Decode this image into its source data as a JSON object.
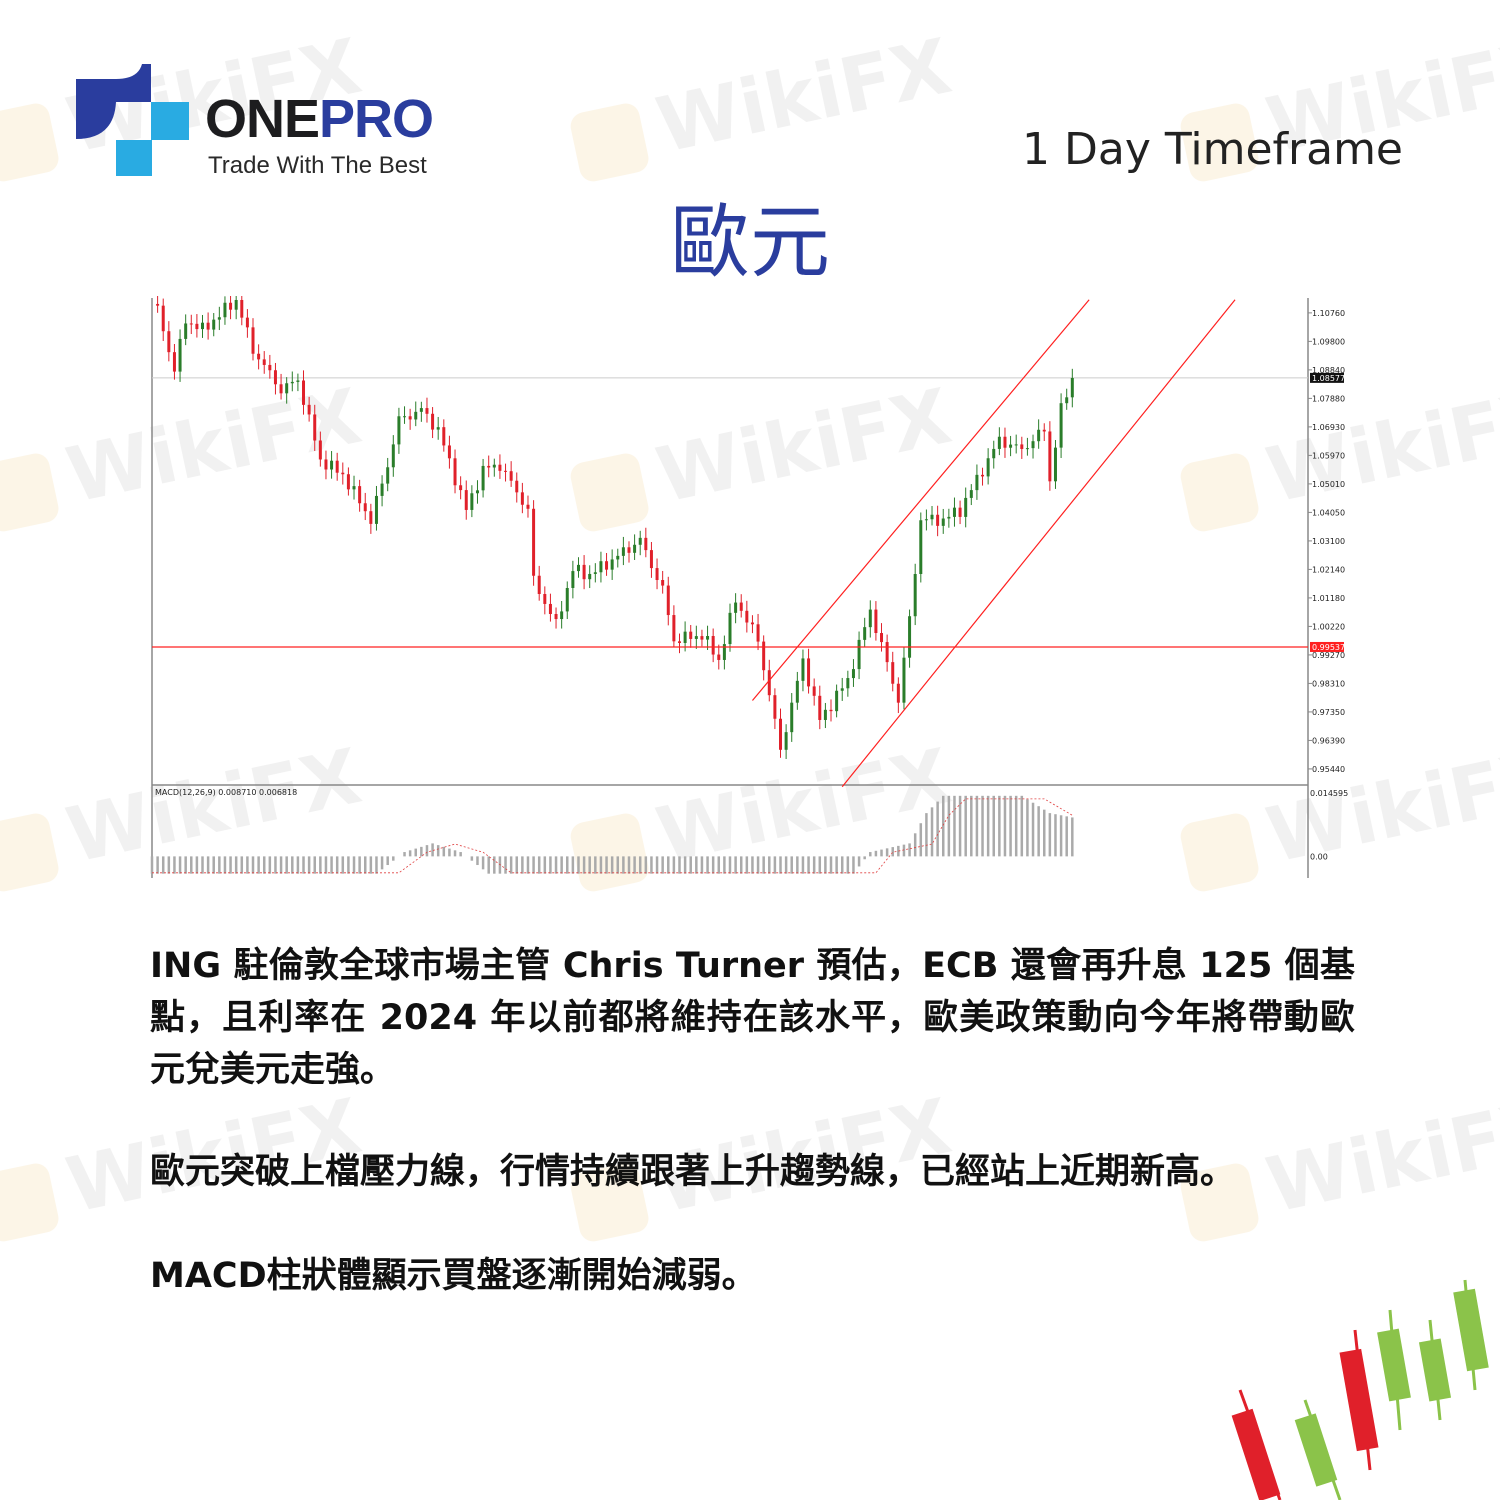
{
  "brand": {
    "name_part1": "ONE",
    "name_part2": "PRO",
    "tagline": "Trade With The Best"
  },
  "header": {
    "timeframe": "1 Day Timeframe",
    "title": "歐元"
  },
  "watermark": "WikiFX",
  "colors": {
    "brand_blue": "#2a3d9e",
    "brand_cyan": "#29abe2",
    "bear": "#e0202a",
    "bull": "#2a7d2a",
    "line": "#ff2020"
  },
  "chart_data": {
    "type": "candlestick",
    "title": "",
    "xlim": [
      0,
      206
    ],
    "ylim": [
      0.949,
      1.1126
    ],
    "y_ticks": [
      "1.10760",
      "1.09800",
      "1.08840",
      "1.07880",
      "1.06930",
      "1.05970",
      "1.05010",
      "1.04050",
      "1.03100",
      "1.02140",
      "1.01180",
      "1.00220",
      "0.99270",
      "0.98310",
      "0.97350",
      "0.96390",
      "0.95440"
    ],
    "last_price_label": "1.08577",
    "horizontal_line": {
      "price": 0.99537,
      "label": "0.99537"
    },
    "close_path": [
      [
        1,
        1.1086
      ],
      [
        4,
        1.0884
      ],
      [
        6,
        1.1052
      ],
      [
        9,
        1.1019
      ],
      [
        15,
        1.112
      ],
      [
        18,
        1.0952
      ],
      [
        23,
        1.0817
      ],
      [
        26,
        1.0851
      ],
      [
        30,
        1.0582
      ],
      [
        34,
        1.0532
      ],
      [
        39,
        1.0381
      ],
      [
        42,
        1.0565
      ],
      [
        44,
        1.0716
      ],
      [
        48,
        1.075
      ],
      [
        51,
        1.0683
      ],
      [
        56,
        1.0414
      ],
      [
        59,
        1.0549
      ],
      [
        62,
        1.0565
      ],
      [
        67,
        1.0414
      ],
      [
        68,
        1.0179
      ],
      [
        72,
        1.0028
      ],
      [
        75,
        1.0213
      ],
      [
        78,
        1.0196
      ],
      [
        82,
        1.0246
      ],
      [
        87,
        1.0313
      ],
      [
        91,
        1.0145
      ],
      [
        93,
        0.9977
      ],
      [
        98,
        0.9994
      ],
      [
        101,
        0.991
      ],
      [
        104,
        1.0112
      ],
      [
        108,
        0.9977
      ],
      [
        112,
        0.9608
      ],
      [
        116,
        0.991
      ],
      [
        119,
        0.9708
      ],
      [
        124,
        0.9843
      ],
      [
        128,
        1.0078
      ],
      [
        133,
        0.9776
      ],
      [
        135,
        1.0045
      ],
      [
        137,
        1.0381
      ],
      [
        141,
        1.0381
      ],
      [
        144,
        1.0414
      ],
      [
        148,
        1.0549
      ],
      [
        151,
        1.0649
      ],
      [
        155,
        1.0616
      ],
      [
        159,
        1.0683
      ],
      [
        160,
        1.0515
      ],
      [
        162,
        1.075
      ],
      [
        164,
        1.0858
      ]
    ],
    "trend_lines": [
      {
        "from": [
          107,
          0.9774
        ],
        "to": [
          167,
          1.112
        ]
      },
      {
        "from": [
          123,
          0.9484
        ],
        "to": [
          193,
          1.112
        ]
      }
    ],
    "macd": {
      "label": "MACD(12,26,9) 0.008710 0.006818",
      "y_ticks": [
        "0.014595",
        "0.00"
      ],
      "ylim": [
        -0.005,
        0.0165
      ],
      "histogram_path": [
        [
          0,
          -0.004
        ],
        [
          40,
          -0.004
        ],
        [
          45,
          0.001
        ],
        [
          50,
          0.003
        ],
        [
          55,
          0.001
        ],
        [
          60,
          -0.004
        ],
        [
          125,
          -0.004
        ],
        [
          128,
          0.001
        ],
        [
          135,
          0.003
        ],
        [
          138,
          0.01
        ],
        [
          141,
          0.014
        ],
        [
          155,
          0.014
        ],
        [
          160,
          0.01
        ],
        [
          164,
          0.009
        ]
      ]
    }
  },
  "body": {
    "paragraph1": "ING 駐倫敦全球市場主管 Chris Turner 預估，ECB 還會再升息 125 個基點，且利率在 2024 年以前都將維持在該水平，歐美政策動向今年將帶動歐元兌美元走強。",
    "paragraph2": "歐元突破上檔壓力線，行情持續跟著上升趨勢線，已經站上近期新高。",
    "paragraph3": "MACD柱狀體顯示買盤逐漸開始減弱。"
  }
}
